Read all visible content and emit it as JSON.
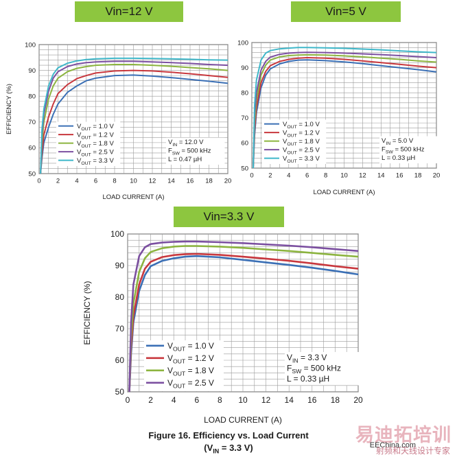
{
  "banners": {
    "b12": "Vin=12 V",
    "b5": "Vin=5 V",
    "b33": "Vin=3.3 V"
  },
  "caption": {
    "line1": "Figure 16. Efficiency vs. Load Current",
    "line2_pre": "(V",
    "line2_sub": "IN",
    "line2_post": " = 3.3 V)"
  },
  "watermark": {
    "main": "易迪拓培训",
    "sub": "射频和天线设计专家",
    "url": "EEChina.com"
  },
  "colors": {
    "v10": "#3a6fb5",
    "v12": "#c8373d",
    "v18": "#8cb43f",
    "v25": "#7b4fa0",
    "v33": "#3fb7c9"
  },
  "chart_data": [
    {
      "type": "line",
      "id": "c12",
      "xlabel": "LOAD CURRENT (A)",
      "ylabel": "EFFICIENCY (%)",
      "xlim": [
        0,
        20
      ],
      "ylim": [
        50,
        100
      ],
      "xticks": [
        0,
        2,
        4,
        6,
        8,
        10,
        12,
        14,
        16,
        18,
        20
      ],
      "yticks": [
        50,
        60,
        70,
        80,
        90,
        100
      ],
      "grid": true,
      "annotation": {
        "vin": "V",
        "vin_sub": "IN",
        "vin_val": " = 12.0 V",
        "fsw": "F",
        "fsw_sub": "SW",
        "fsw_val": " = 500 kHz",
        "l": "L = 0.47 µH"
      },
      "series": [
        {
          "name_pre": "V",
          "name_sub": "OUT",
          "name_post": " = 1.0 V",
          "color": "v10",
          "x": [
            0.15,
            0.3,
            0.5,
            1,
            1.5,
            2,
            3,
            4,
            5,
            6,
            8,
            10,
            12,
            14,
            16,
            18,
            20
          ],
          "y": [
            50,
            56,
            62,
            68,
            73,
            77,
            81.5,
            84,
            86,
            87,
            88,
            88.2,
            87.8,
            87.2,
            86.5,
            85.8,
            85
          ]
        },
        {
          "name_pre": "V",
          "name_sub": "OUT",
          "name_post": " = 1.2 V",
          "color": "v12",
          "x": [
            0.15,
            0.3,
            0.5,
            1,
            1.5,
            2,
            3,
            4,
            5,
            6,
            8,
            10,
            12,
            14,
            16,
            18,
            20
          ],
          "y": [
            50,
            58,
            65,
            72,
            77,
            81,
            84.5,
            86.8,
            88,
            89,
            89.8,
            90,
            89.8,
            89.3,
            88.7,
            88,
            87.3
          ]
        },
        {
          "name_pre": "V",
          "name_sub": "OUT",
          "name_post": " = 1.8 V",
          "color": "v18",
          "x": [
            0.15,
            0.3,
            0.5,
            1,
            1.5,
            2,
            3,
            4,
            5,
            6,
            8,
            10,
            12,
            14,
            16,
            18,
            20
          ],
          "y": [
            50,
            62,
            70,
            79,
            84,
            87,
            89.5,
            90.8,
            91.5,
            92,
            92.3,
            92.3,
            92,
            91.6,
            91.1,
            90.6,
            90
          ]
        },
        {
          "name_pre": "V",
          "name_sub": "OUT",
          "name_post": " = 2.5 V",
          "color": "v25",
          "x": [
            0.15,
            0.3,
            0.5,
            1,
            1.5,
            2,
            3,
            4,
            5,
            6,
            8,
            10,
            12,
            14,
            16,
            18,
            20
          ],
          "y": [
            50,
            65,
            73,
            82,
            87,
            89.5,
            91.5,
            92.5,
            93,
            93.3,
            93.5,
            93.5,
            93.3,
            93,
            92.7,
            92.3,
            92
          ]
        },
        {
          "name_pre": "V",
          "name_sub": "OUT",
          "name_post": " = 3.3 V",
          "color": "v33",
          "x": [
            0.15,
            0.3,
            0.5,
            1,
            1.5,
            2,
            3,
            4,
            5,
            6,
            8,
            10,
            12,
            14,
            16,
            18,
            20
          ],
          "y": [
            50,
            67,
            75,
            84,
            88.5,
            91,
            92.8,
            93.7,
            94.2,
            94.5,
            94.7,
            94.7,
            94.6,
            94.5,
            94.3,
            94.1,
            94
          ]
        }
      ]
    },
    {
      "type": "line",
      "id": "c5",
      "xlabel": "LOAD CURRENT (A)",
      "ylabel": "",
      "xlim": [
        0,
        20
      ],
      "ylim": [
        50,
        100
      ],
      "xticks": [
        0,
        2,
        4,
        6,
        8,
        10,
        12,
        14,
        16,
        18,
        20
      ],
      "yticks": [
        50,
        60,
        70,
        80,
        90,
        100
      ],
      "grid": true,
      "annotation": {
        "vin": "V",
        "vin_sub": "IN",
        "vin_val": " = 5.0 V",
        "fsw": "F",
        "fsw_sub": "SW",
        "fsw_val": " = 500 kHz",
        "l": "L = 0.33 µH"
      },
      "series": [
        {
          "name_pre": "V",
          "name_sub": "OUT",
          "name_post": " = 1.0 V",
          "color": "v10",
          "x": [
            0.15,
            0.3,
            0.5,
            1,
            1.5,
            2,
            3,
            4,
            5,
            6,
            8,
            10,
            12,
            14,
            16,
            18,
            20
          ],
          "y": [
            50,
            63,
            72,
            82,
            87,
            89.5,
            91.5,
            92.5,
            93,
            93.1,
            92.8,
            92.3,
            91.6,
            90.8,
            90,
            89.2,
            88.3
          ]
        },
        {
          "name_pre": "V",
          "name_sub": "OUT",
          "name_post": " = 1.2 V",
          "color": "v12",
          "x": [
            0.15,
            0.3,
            0.5,
            1,
            1.5,
            2,
            3,
            4,
            5,
            6,
            8,
            10,
            12,
            14,
            16,
            18,
            20
          ],
          "y": [
            50,
            65,
            74,
            84,
            88.5,
            90.8,
            92.5,
            93.3,
            93.8,
            94,
            93.8,
            93.3,
            92.7,
            92,
            91.3,
            90.6,
            90
          ]
        },
        {
          "name_pre": "V",
          "name_sub": "OUT",
          "name_post": " = 1.8 V",
          "color": "v18",
          "x": [
            0.15,
            0.3,
            0.5,
            1,
            1.5,
            2,
            3,
            4,
            5,
            6,
            8,
            10,
            12,
            14,
            16,
            18,
            20
          ],
          "y": [
            50,
            68,
            77,
            87,
            91,
            93,
            94.3,
            94.8,
            95,
            95.1,
            95,
            94.7,
            94.3,
            93.8,
            93.3,
            92.7,
            92.2
          ]
        },
        {
          "name_pre": "V",
          "name_sub": "OUT",
          "name_post": " = 2.5 V",
          "color": "v25",
          "x": [
            0.15,
            0.3,
            0.5,
            1,
            1.5,
            2,
            3,
            4,
            5,
            6,
            8,
            10,
            12,
            14,
            16,
            18,
            20
          ],
          "y": [
            50,
            71,
            80,
            89,
            92.5,
            94.2,
            95.3,
            95.8,
            96,
            96.1,
            96,
            95.8,
            95.5,
            95.2,
            94.8,
            94.4,
            94
          ]
        },
        {
          "name_pre": "V",
          "name_sub": "OUT",
          "name_post": " = 3.3 V",
          "color": "v33",
          "x": [
            0.15,
            0.3,
            0.5,
            1,
            1.5,
            2,
            3,
            4,
            5,
            6,
            8,
            10,
            12,
            14,
            16,
            18,
            20
          ],
          "y": [
            50,
            75,
            85,
            93,
            95.8,
            96.8,
            97.5,
            97.8,
            98,
            98,
            97.9,
            97.7,
            97.4,
            97.1,
            96.7,
            96.3,
            96
          ]
        }
      ]
    },
    {
      "type": "line",
      "id": "c33",
      "xlabel": "LOAD CURRENT (A)",
      "ylabel": "EFFICIENCY (%)",
      "xlim": [
        0,
        20
      ],
      "ylim": [
        50,
        100
      ],
      "xticks": [
        0,
        2,
        4,
        6,
        8,
        10,
        12,
        14,
        16,
        18,
        20
      ],
      "yticks": [
        50,
        60,
        70,
        80,
        90,
        100
      ],
      "grid": true,
      "annotation": {
        "vin": "V",
        "vin_sub": "IN",
        "vin_val": " = 3.3 V",
        "fsw": "F",
        "fsw_sub": "SW",
        "fsw_val": " = 500 kHz",
        "l": "L = 0.33 µH"
      },
      "series": [
        {
          "name_pre": "V",
          "name_sub": "OUT",
          "name_post": " = 1.0 V",
          "color": "v10",
          "x": [
            0.15,
            0.3,
            0.5,
            1,
            1.5,
            2,
            3,
            4,
            5,
            6,
            8,
            10,
            12,
            14,
            16,
            18,
            20
          ],
          "y": [
            50,
            62,
            72,
            82,
            87,
            89.8,
            91.5,
            92.3,
            92.8,
            93,
            92.6,
            91.8,
            91,
            90.2,
            89.3,
            88.3,
            87.2
          ]
        },
        {
          "name_pre": "V",
          "name_sub": "OUT",
          "name_post": " = 1.2 V",
          "color": "v12",
          "x": [
            0.15,
            0.3,
            0.5,
            1,
            1.5,
            2,
            3,
            4,
            5,
            6,
            8,
            10,
            12,
            14,
            16,
            18,
            20
          ],
          "y": [
            50,
            64,
            74,
            84,
            89,
            91.2,
            92.7,
            93.3,
            93.6,
            93.7,
            93.4,
            92.8,
            92.2,
            91.5,
            90.7,
            89.8,
            89
          ]
        },
        {
          "name_pre": "V",
          "name_sub": "OUT",
          "name_post": " = 1.8 V",
          "color": "v18",
          "x": [
            0.15,
            0.3,
            0.5,
            1,
            1.5,
            2,
            3,
            4,
            5,
            6,
            8,
            10,
            12,
            14,
            16,
            18,
            20
          ],
          "y": [
            50,
            67,
            78,
            88,
            92.3,
            94.3,
            95.5,
            96,
            96.2,
            96.2,
            96,
            95.6,
            95.1,
            94.6,
            94,
            93.4,
            92.8
          ]
        },
        {
          "name_pre": "V",
          "name_sub": "OUT",
          "name_post": " = 2.5 V",
          "color": "v25",
          "x": [
            0.15,
            0.3,
            0.5,
            1,
            1.5,
            2,
            3,
            4,
            5,
            6,
            8,
            10,
            12,
            14,
            16,
            18,
            20
          ],
          "y": [
            50,
            72,
            84,
            93,
            95.8,
            96.8,
            97.3,
            97.5,
            97.6,
            97.6,
            97.4,
            97.1,
            96.7,
            96.3,
            95.8,
            95.2,
            94.6
          ]
        }
      ]
    }
  ]
}
